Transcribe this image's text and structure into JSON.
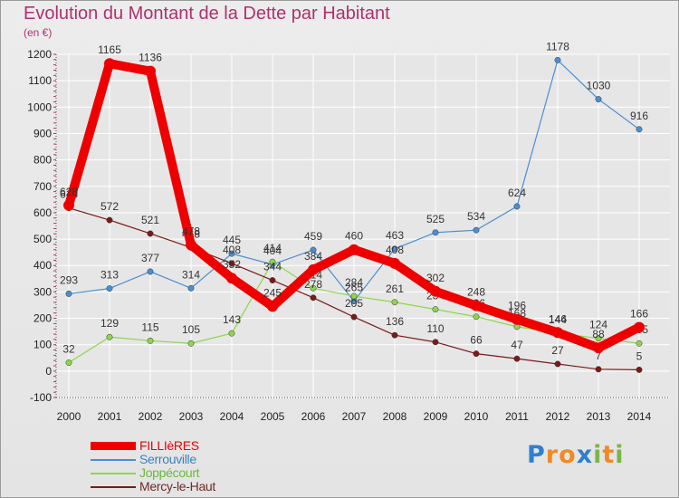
{
  "header": {
    "title": "Evolution du Montant de la Dette par Habitant",
    "unit": "(en €)"
  },
  "colors": {
    "title": "#b0306e",
    "grid": "#ffffff",
    "background": "#e9e9e9"
  },
  "chart_data": {
    "type": "line",
    "title": "Evolution du Montant de la Dette par Habitant",
    "ylabel": "(en €)",
    "xlabel": "",
    "x": [
      "2000",
      "2001",
      "2002",
      "2003",
      "2004",
      "2005",
      "2006",
      "2007",
      "2008",
      "2009",
      "2010",
      "2011",
      "2012",
      "2013",
      "2014"
    ],
    "ylim": [
      -100,
      1200
    ],
    "yticks": [
      -100,
      0,
      100,
      200,
      300,
      400,
      500,
      600,
      700,
      800,
      900,
      1000,
      1100,
      1200
    ],
    "grid": true,
    "legend_position": "bottom-left",
    "series": [
      {
        "name": "FILLIèRES",
        "color": "#ee0000",
        "text_color": "#ee0000",
        "emphasis": true,
        "values": [
          628,
          1165,
          1136,
          478,
          352,
          245,
          384,
          460,
          408,
          302,
          248,
          196,
          146,
          88,
          166
        ],
        "labels": [
          "628",
          "1165",
          "1136",
          "478",
          "352",
          "245",
          "384",
          "460",
          "408",
          "302",
          "248",
          "196",
          "146",
          "88",
          "166"
        ]
      },
      {
        "name": "Serrouville",
        "color": "#4b8fd0",
        "text_color": "#3a80c0",
        "emphasis": false,
        "values": [
          293,
          313,
          377,
          314,
          445,
          404,
          459,
          265,
          463,
          525,
          534,
          624,
          1178,
          1030,
          916
        ],
        "labels": [
          "293",
          "313",
          "377",
          "314",
          "445",
          "404",
          "459",
          "265",
          "463",
          "525",
          "534",
          "624",
          "1178",
          "1030",
          "916"
        ]
      },
      {
        "name": "Joppécourt",
        "color": "#8ed64a",
        "text_color": "#6cb83a",
        "emphasis": false,
        "values": [
          32,
          129,
          115,
          105,
          143,
          414,
          314,
          284,
          261,
          234,
          206,
          168,
          144,
          124,
          105
        ],
        "labels": [
          "32",
          "129",
          "115",
          "105",
          "143",
          "414",
          "314",
          "284",
          "261",
          "234",
          "206",
          "168",
          "144",
          "124",
          "105"
        ]
      },
      {
        "name": "Mercy-le-Haut",
        "color": "#7a1a1a",
        "text_color": "#6e2a2a",
        "emphasis": false,
        "values": [
          618,
          572,
          521,
          468,
          408,
          344,
          278,
          205,
          136,
          110,
          66,
          47,
          27,
          7,
          5
        ],
        "labels": [
          "618",
          "572",
          "521",
          "468",
          "408",
          "344",
          "278",
          "205",
          "136",
          "110",
          "66",
          "47",
          "27",
          "7",
          "5"
        ]
      }
    ]
  },
  "logo": {
    "text": "Proxiti",
    "letters": [
      {
        "ch": "P",
        "color": "#2f7fd0"
      },
      {
        "ch": "r",
        "color": "#f08a24"
      },
      {
        "ch": "o",
        "color": "#f08a24"
      },
      {
        "ch": "x",
        "color": "#2f7fd0"
      },
      {
        "ch": "i",
        "color": "#7ab648"
      },
      {
        "ch": "t",
        "color": "#f08a24"
      },
      {
        "ch": "i",
        "color": "#7ab648"
      }
    ]
  }
}
